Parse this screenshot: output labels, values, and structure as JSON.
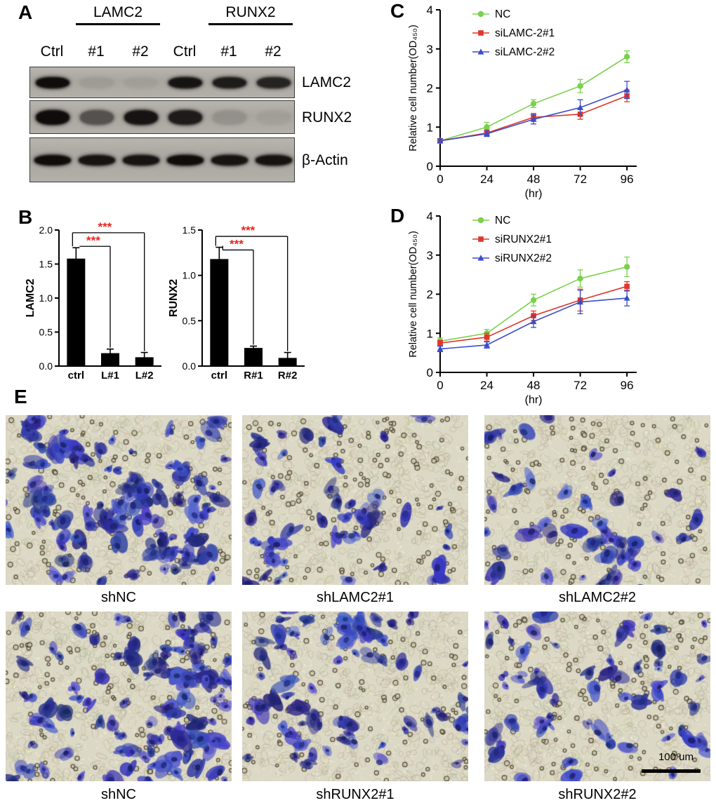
{
  "figure": {
    "panel_labels": {
      "A": "A",
      "B": "B",
      "C": "C",
      "D": "D",
      "E": "E"
    }
  },
  "western_blot": {
    "group_headers": [
      "LAMC2",
      "RUNX2"
    ],
    "lane_labels": [
      "Ctrl",
      "#1",
      "#2",
      "Ctrl",
      "#1",
      "#2"
    ],
    "rows": [
      {
        "label": "LAMC2",
        "band_intensities": [
          1.0,
          0.07,
          0.05,
          0.95,
          0.9,
          0.85
        ]
      },
      {
        "label": "RUNX2",
        "band_intensities": [
          1.0,
          0.55,
          0.95,
          0.9,
          0.14,
          0.05
        ]
      },
      {
        "label": "β-Actin",
        "band_intensities": [
          1.0,
          0.95,
          0.95,
          1.0,
          0.95,
          0.95
        ]
      }
    ]
  },
  "chart_data": [
    {
      "id": "lamc2_knockdown_bar",
      "type": "bar",
      "panel": "B",
      "categories": [
        "ctrl",
        "L#1",
        "L#2"
      ],
      "values": [
        1.58,
        0.19,
        0.13
      ],
      "errors": [
        0.16,
        0.06,
        0.07
      ],
      "ylabel": "LAMC2",
      "ylim": [
        0,
        2.0
      ],
      "yticks": [
        0,
        0.5,
        1.0,
        1.5,
        2.0
      ],
      "ytick_labels": [
        "0.0",
        "0.5",
        "1.0",
        "1.5",
        "2.0"
      ],
      "bar_color": "#000000",
      "sig_color": "#e8251f",
      "significance": [
        {
          "from": 0,
          "to": 1,
          "label": "***",
          "y": 1.76
        },
        {
          "from": 0,
          "to": 2,
          "label": "***",
          "y": 1.96
        }
      ]
    },
    {
      "id": "runx2_knockdown_bar",
      "type": "bar",
      "panel": "B",
      "categories": [
        "ctrl",
        "R#1",
        "R#2"
      ],
      "values": [
        1.18,
        0.2,
        0.09
      ],
      "errors": [
        0.13,
        0.02,
        0.06
      ],
      "ylabel": "RUNX2",
      "ylim": [
        0,
        1.5
      ],
      "yticks": [
        0,
        0.5,
        1.0,
        1.5
      ],
      "ytick_labels": [
        "0.0",
        "0.5",
        "1.0",
        "1.5"
      ],
      "bar_color": "#000000",
      "sig_color": "#e8251f",
      "significance": [
        {
          "from": 0,
          "to": 1,
          "label": "***",
          "y": 1.28
        },
        {
          "from": 0,
          "to": 2,
          "label": "***",
          "y": 1.43
        }
      ]
    },
    {
      "id": "silamc2_growth_curve",
      "type": "line",
      "panel": "C",
      "x": [
        0,
        24,
        48,
        72,
        96
      ],
      "xlim": [
        0,
        101
      ],
      "xticks": [
        0,
        24,
        48,
        72,
        96
      ],
      "xlabel": "(hr)",
      "ylabel": "Relative cell number(OD₄₅₀)",
      "ylim": [
        0,
        4
      ],
      "yticks": [
        0,
        1,
        2,
        3,
        4
      ],
      "series": [
        {
          "name": "NC",
          "color": "#79d14b",
          "marker": "circle",
          "values": [
            0.65,
            1.0,
            1.6,
            2.05,
            2.8
          ],
          "errors": [
            0.06,
            0.12,
            0.1,
            0.17,
            0.15
          ]
        },
        {
          "name": "siLAMC-2#1",
          "color": "#e0352b",
          "marker": "square",
          "values": [
            0.65,
            0.85,
            1.25,
            1.33,
            1.8
          ],
          "errors": [
            0.05,
            0.08,
            0.1,
            0.13,
            0.15
          ]
        },
        {
          "name": "siLAMC-2#2",
          "color": "#3b4cc8",
          "marker": "triangle",
          "values": [
            0.65,
            0.83,
            1.2,
            1.5,
            1.95
          ],
          "errors": [
            0.05,
            0.07,
            0.12,
            0.2,
            0.22
          ]
        }
      ]
    },
    {
      "id": "sirunx2_growth_curve",
      "type": "line",
      "panel": "D",
      "x": [
        0,
        24,
        48,
        72,
        96
      ],
      "xlim": [
        0,
        101
      ],
      "xticks": [
        0,
        24,
        48,
        72,
        96
      ],
      "xlabel": "(hr)",
      "ylabel": "Relative cell number(OD₄₅₀)",
      "ylim": [
        0,
        4
      ],
      "yticks": [
        0,
        1,
        2,
        3,
        4
      ],
      "series": [
        {
          "name": "NC",
          "color": "#79d14b",
          "marker": "circle",
          "values": [
            0.8,
            1.0,
            1.85,
            2.4,
            2.7
          ],
          "errors": [
            0.08,
            0.1,
            0.15,
            0.22,
            0.25
          ]
        },
        {
          "name": "siRUNX2#1",
          "color": "#e0352b",
          "marker": "square",
          "values": [
            0.75,
            0.9,
            1.45,
            1.85,
            2.2
          ],
          "errors": [
            0.07,
            0.1,
            0.12,
            0.28,
            0.12
          ]
        },
        {
          "name": "siRUNX2#2",
          "color": "#3b4cc8",
          "marker": "triangle",
          "values": [
            0.6,
            0.7,
            1.3,
            1.8,
            1.9
          ],
          "errors": [
            0.07,
            0.08,
            0.15,
            0.3,
            0.2
          ]
        }
      ]
    }
  ],
  "transwell": {
    "images": [
      {
        "label": "shNC",
        "seed": 11,
        "relative_cell_count": 130
      },
      {
        "label": "shLAMC2#1",
        "seed": 22,
        "relative_cell_count": 60
      },
      {
        "label": "shLAMC2#2",
        "seed": 33,
        "relative_cell_count": 50
      },
      {
        "label": "shNC",
        "seed": 44,
        "relative_cell_count": 120
      },
      {
        "label": "shRUNX2#1",
        "seed": 55,
        "relative_cell_count": 78
      },
      {
        "label": "shRUNX2#2",
        "seed": 66,
        "relative_cell_count": 70
      }
    ],
    "scale_bar_label": "100 um"
  }
}
